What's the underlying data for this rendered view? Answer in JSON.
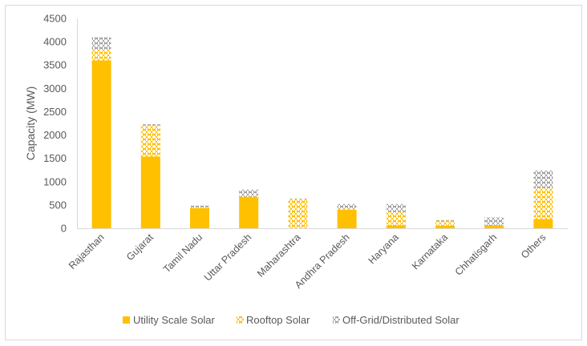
{
  "chart_data": {
    "type": "bar",
    "stacked": true,
    "title": "",
    "xlabel": "",
    "ylabel": "Capacity (MW)",
    "ylim": [
      0,
      4500
    ],
    "yticks": [
      0,
      500,
      1000,
      1500,
      2000,
      2500,
      3000,
      3500,
      4000,
      4500
    ],
    "ytick_labels": [
      "0",
      "500",
      "1000",
      "1500",
      "2000",
      "2500",
      "3000",
      "3500",
      "4000",
      "4500"
    ],
    "grid": false,
    "legend_position": "bottom",
    "categories": [
      "Rajasthan",
      "Gujarat",
      "Tamil Nadu",
      "Uttar Pradesh",
      "Maharashtra",
      "Andhra Pradesh",
      "Haryana",
      "Karnataka",
      "Chhatisgarh",
      "Others"
    ],
    "series": [
      {
        "name": "Utility Scale Solar",
        "color": "#ffc000",
        "pattern": "solid",
        "values": [
          3600,
          1540,
          430,
          670,
          0,
          400,
          60,
          55,
          60,
          200
        ]
      },
      {
        "name": "Rooftop Solar",
        "color": "#ffc000",
        "pattern": "lattice",
        "values": [
          230,
          670,
          20,
          10,
          630,
          20,
          290,
          110,
          0,
          660
        ]
      },
      {
        "name": "Off-Grid/Distributed Solar",
        "color": "#a5a5a5",
        "pattern": "lattice",
        "values": [
          270,
          20,
          40,
          150,
          10,
          100,
          170,
          10,
          180,
          380
        ]
      }
    ]
  }
}
